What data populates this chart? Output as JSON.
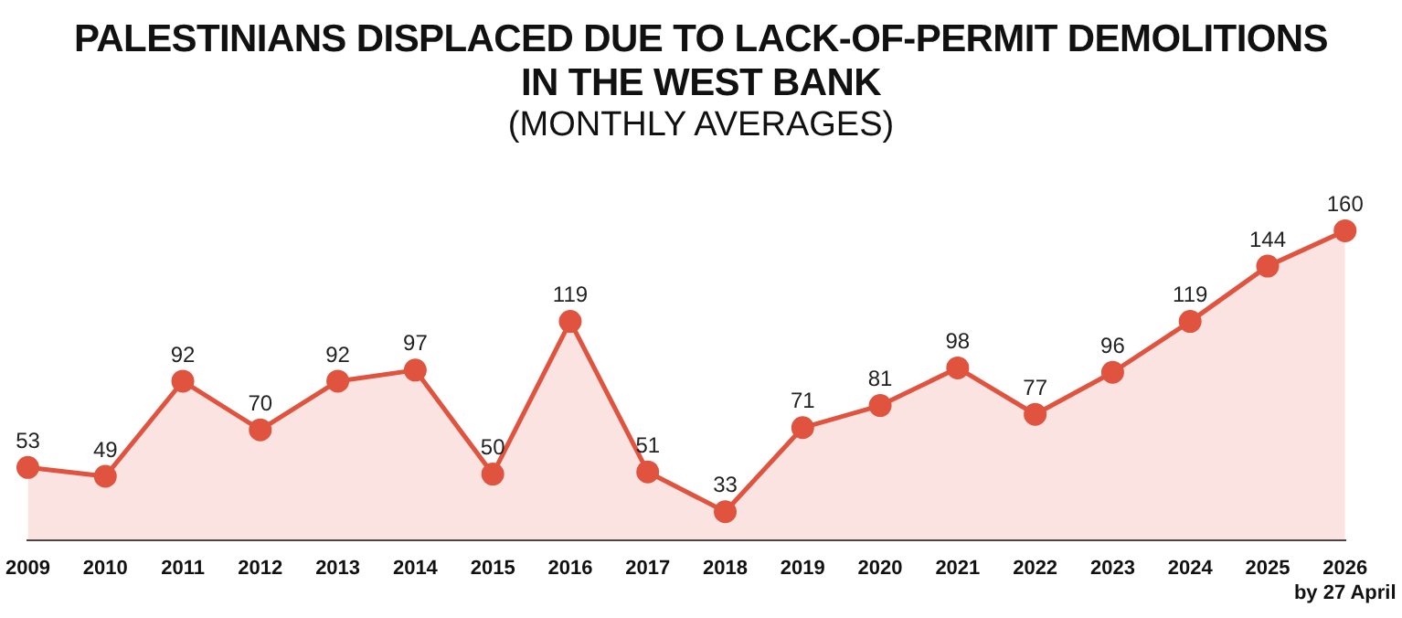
{
  "chart_data": {
    "type": "area",
    "title": "PALESTINIANS DISPLACED DUE TO LACK-OF-PERMIT DEMOLITIONS\nIN THE WEST BANK",
    "subtitle": "(MONTHLY AVERAGES)",
    "categories": [
      "2009",
      "2010",
      "2011",
      "2012",
      "2013",
      "2014",
      "2015",
      "2016",
      "2017",
      "2018",
      "2019",
      "2020",
      "2021",
      "2022",
      "2023",
      "2024",
      "2025",
      "2026\nby 27 April"
    ],
    "series": [
      {
        "color": "#e0533f",
        "values": [
          53,
          49,
          92,
          70,
          92,
          97,
          50,
          119,
          51,
          33,
          71,
          81,
          98,
          77,
          96,
          119,
          144,
          160
        ]
      }
    ],
    "data_labels": true,
    "marker": "circle",
    "grid": false,
    "legend": false
  }
}
